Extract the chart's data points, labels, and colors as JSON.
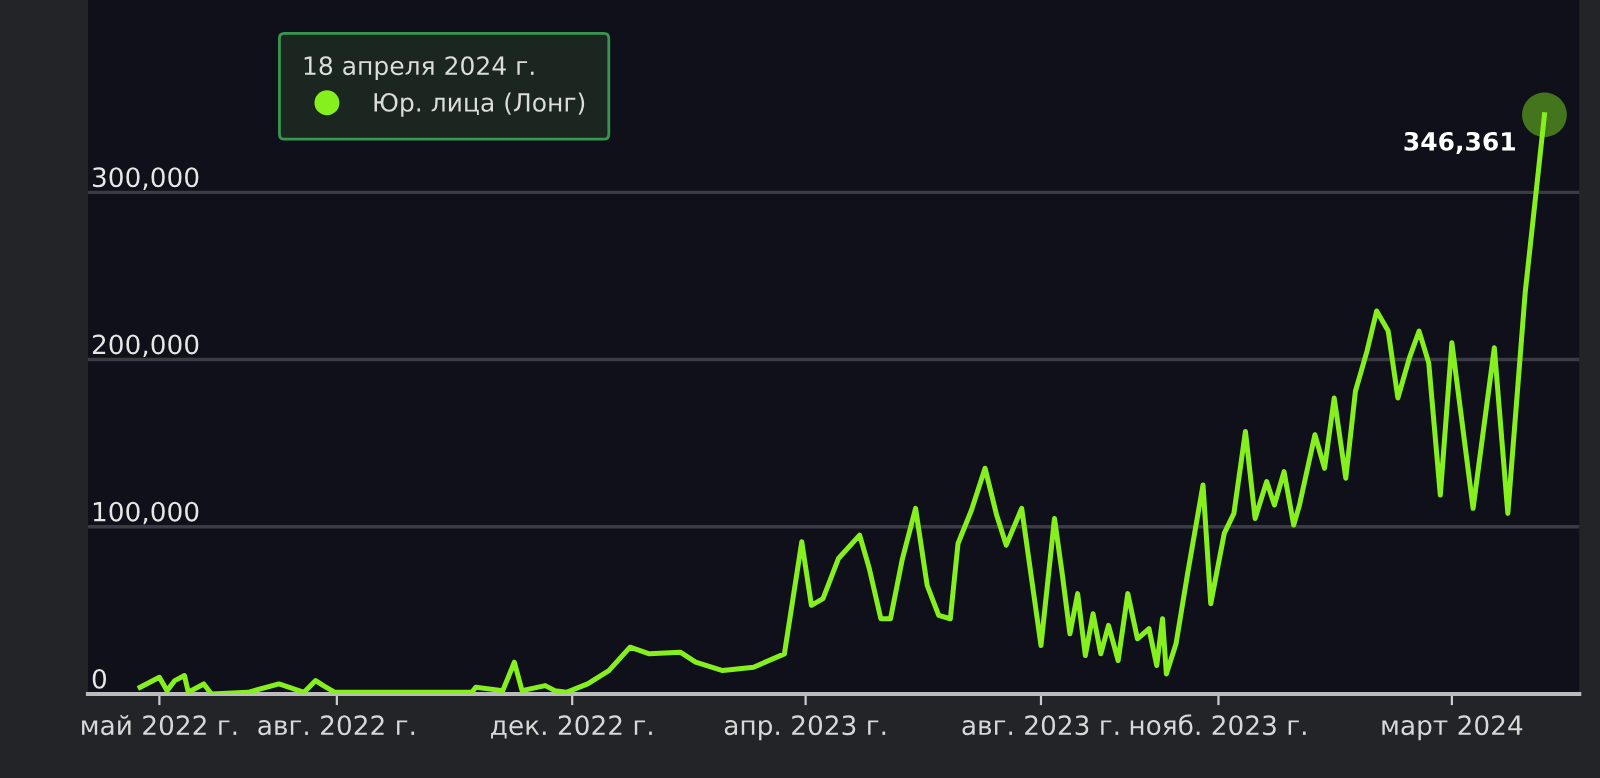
{
  "chart_data": {
    "type": "line",
    "x": [
      "2022-04-21",
      "2022-05-01",
      "2022-05-05",
      "2022-05-09",
      "2022-05-14",
      "2022-05-16",
      "2022-05-24",
      "2022-05-28",
      "2022-06-16",
      "2022-07-02",
      "2022-07-15",
      "2022-07-21",
      "2022-07-25",
      "2022-07-31",
      "2022-09-02",
      "2022-10-10",
      "2022-10-12",
      "2022-10-26",
      "2022-11-01",
      "2022-11-05",
      "2022-11-17",
      "2022-11-22",
      "2022-11-28",
      "2022-12-09",
      "2022-12-20",
      "2022-12-31",
      "2023-01-10",
      "2023-01-26",
      "2023-02-03",
      "2023-02-17",
      "2023-03-05",
      "2023-03-21",
      "2023-03-30",
      "2023-04-04",
      "2023-04-10",
      "2023-04-18",
      "2023-04-29",
      "2023-05-04",
      "2023-05-10",
      "2023-05-15",
      "2023-05-21",
      "2023-05-28",
      "2023-06-03",
      "2023-06-09",
      "2023-06-15",
      "2023-06-19",
      "2023-06-26",
      "2023-07-03",
      "2023-07-09",
      "2023-07-14",
      "2023-07-22",
      "2023-08-01",
      "2023-08-08",
      "2023-08-12",
      "2023-08-16",
      "2023-08-20",
      "2023-08-24",
      "2023-08-28",
      "2023-09-01",
      "2023-09-05",
      "2023-09-10",
      "2023-09-15",
      "2023-09-20",
      "2023-09-26",
      "2023-09-30",
      "2023-10-03",
      "2023-10-05",
      "2023-10-10",
      "2023-10-16",
      "2023-10-24",
      "2023-10-28",
      "2023-11-04",
      "2023-11-09",
      "2023-11-15",
      "2023-11-20",
      "2023-11-26",
      "2023-11-30",
      "2023-12-05",
      "2023-12-10",
      "2023-12-13",
      "2023-12-21",
      "2023-12-26",
      "2023-12-31",
      "2024-01-06",
      "2024-01-11",
      "2024-01-17",
      "2024-01-22",
      "2024-01-28",
      "2024-02-02",
      "2024-02-08",
      "2024-02-13",
      "2024-02-18",
      "2024-02-24",
      "2024-03-01",
      "2024-03-12",
      "2024-03-23",
      "2024-03-30",
      "2024-04-08",
      "2024-04-18"
    ],
    "series": [
      {
        "name": "Юр. лица (Лонг)",
        "color": "#86f01e",
        "values": [
          4000,
          10000,
          2000,
          8000,
          11000,
          1000,
          6000,
          0,
          1000,
          6000,
          1000,
          8000,
          5000,
          1000,
          1000,
          1000,
          4000,
          2000,
          19000,
          2000,
          5000,
          2000,
          1000,
          6000,
          14000,
          28000,
          24000,
          25000,
          19000,
          14000,
          16000,
          24000,
          91000,
          53000,
          57000,
          81000,
          95000,
          75000,
          45000,
          45000,
          80000,
          111000,
          65000,
          47000,
          45000,
          90000,
          110000,
          135000,
          107000,
          89000,
          111000,
          29000,
          105000,
          72000,
          36000,
          60000,
          23000,
          48000,
          24000,
          41000,
          20000,
          60000,
          33000,
          39000,
          17000,
          45000,
          12000,
          30000,
          72000,
          125000,
          54000,
          96000,
          108000,
          157000,
          105000,
          127000,
          113000,
          133000,
          101000,
          113000,
          155000,
          135000,
          177000,
          129000,
          181000,
          205000,
          229000,
          217000,
          177000,
          201000,
          217000,
          198000,
          119000,
          210000,
          111000,
          207000,
          108000,
          240000,
          346361
        ],
        "value_labels": [
          null,
          null,
          null,
          null,
          null,
          null,
          null,
          null,
          null,
          null,
          null,
          null,
          null,
          null,
          null,
          null,
          null,
          null,
          null,
          null,
          null,
          null,
          null,
          null,
          null,
          null,
          null,
          null,
          null,
          null,
          null,
          null,
          null,
          null,
          null,
          null,
          null,
          null,
          null,
          null,
          null,
          null,
          null,
          null,
          null,
          null,
          null,
          null,
          null,
          null,
          null,
          null,
          null,
          null,
          null,
          null,
          null,
          null,
          null,
          null,
          null,
          null,
          null,
          null,
          null,
          null,
          null,
          null,
          null,
          null,
          null,
          null,
          null,
          null,
          null,
          null,
          null,
          null,
          null,
          null,
          null,
          null,
          null,
          null,
          null,
          null,
          null,
          null,
          null,
          null,
          null,
          null,
          null,
          null,
          null,
          null,
          null,
          null,
          "346,361"
        ]
      }
    ],
    "legend_title": "18 апреля 2024 г.",
    "legend": "top left",
    "xlim": [
      "2022-03-25",
      "2024-05-06"
    ],
    "xticks": [
      {
        "value": "2022-05-01",
        "label": "май 2022 г."
      },
      {
        "value": "2022-08-01",
        "label": "авг. 2022 г."
      },
      {
        "value": "2022-12-01",
        "label": "дек. 2022 г."
      },
      {
        "value": "2023-04-01",
        "label": "апр. 2023 г."
      },
      {
        "value": "2023-08-01",
        "label": "авг. 2023 г."
      },
      {
        "value": "2023-11-01",
        "label": "нояб. 2023 г."
      },
      {
        "value": "2024-03-01",
        "label": "март 2024"
      }
    ],
    "ylim": [
      0,
      415000
    ],
    "yticks": [
      {
        "value": 0,
        "label": "0"
      },
      {
        "value": 100000,
        "label": "100,000"
      },
      {
        "value": 200000,
        "label": "200,000"
      },
      {
        "value": 300000,
        "label": "300,000"
      }
    ],
    "grid": "y",
    "line_style": "solid",
    "marker": "none"
  }
}
